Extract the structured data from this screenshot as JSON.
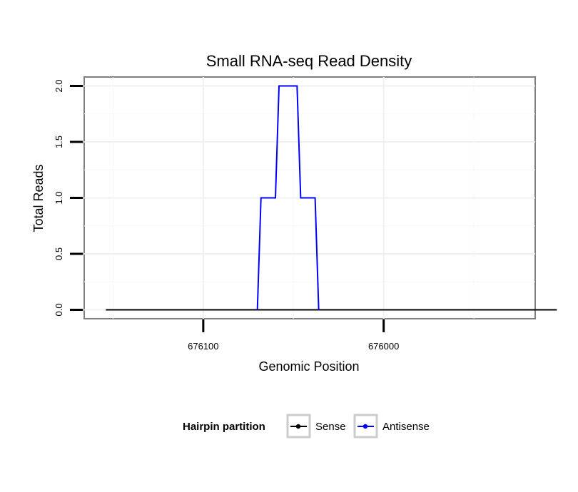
{
  "chart_data": {
    "type": "line",
    "title": "Small RNA-seq Read Density",
    "xlabel": "Genomic Position",
    "ylabel": "Total Reads",
    "x_reversed": true,
    "xlim": [
      676166,
      675916
    ],
    "ylim": [
      -0.08,
      2.08
    ],
    "x_ticks": [
      676100,
      676000
    ],
    "x_tick_labels": [
      "676100",
      "676000"
    ],
    "y_ticks": [
      0.0,
      0.5,
      1.0,
      1.5,
      2.0
    ],
    "y_tick_labels": [
      "0.0",
      "0.5",
      "1.0",
      "1.5",
      "2.0"
    ],
    "grid": true,
    "legend": {
      "title": "Hairpin partition",
      "position": "bottom",
      "entries": [
        {
          "label": "Sense",
          "color": "#000000"
        },
        {
          "label": "Antisense",
          "color": "#0000ff"
        }
      ]
    },
    "series": [
      {
        "name": "Sense",
        "color": "#000000",
        "x": [
          676154,
          675904
        ],
        "y": [
          0,
          0
        ]
      },
      {
        "name": "Antisense",
        "color": "#0000ff",
        "x": [
          676070,
          676069,
          676068,
          676060,
          676059,
          676058,
          676048,
          676047,
          676046,
          676038,
          676037,
          676036
        ],
        "y": [
          0,
          0.5,
          1,
          1,
          1.5,
          2,
          2,
          1.5,
          1,
          1,
          0.5,
          0
        ]
      }
    ]
  }
}
